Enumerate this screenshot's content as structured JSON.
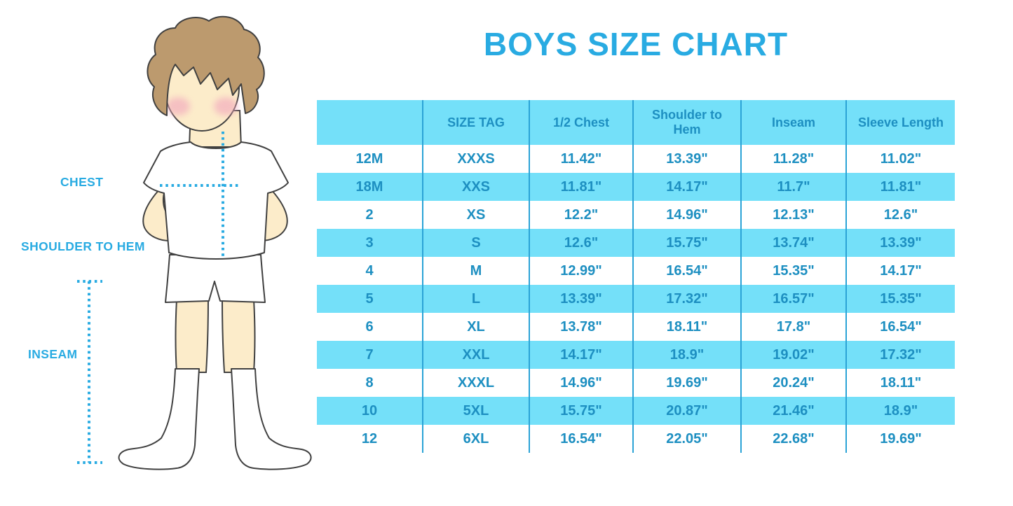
{
  "title": "BOYS SIZE CHART",
  "figure": {
    "chest_label": "CHEST",
    "shoulder_to_hem_label": "SHOULDER TO HEM",
    "inseam_label": "INSEAM"
  },
  "colors": {
    "accent_blue": "#29abe2",
    "stripe_blue": "#74e0f9",
    "table_text_blue": "#1d8fc1",
    "column_divider_blue": "#2ba3d6",
    "hair_brown": "#bc9a6e",
    "skin": "#fcecca",
    "cheek_pink": "#f2a9bd"
  },
  "chart_data": {
    "type": "table",
    "title": "BOYS SIZE CHART",
    "columns": [
      "",
      "SIZE TAG",
      "1/2 Chest",
      "Shoulder to Hem",
      "Inseam",
      "Sleeve Length"
    ],
    "rows": [
      [
        "12M",
        "XXXS",
        "11.42\"",
        "13.39\"",
        "11.28\"",
        "11.02\""
      ],
      [
        "18M",
        "XXS",
        "11.81\"",
        "14.17\"",
        "11.7\"",
        "11.81\""
      ],
      [
        "2",
        "XS",
        "12.2\"",
        "14.96\"",
        "12.13\"",
        "12.6\""
      ],
      [
        "3",
        "S",
        "12.6\"",
        "15.75\"",
        "13.74\"",
        "13.39\""
      ],
      [
        "4",
        "M",
        "12.99\"",
        "16.54\"",
        "15.35\"",
        "14.17\""
      ],
      [
        "5",
        "L",
        "13.39\"",
        "17.32\"",
        "16.57\"",
        "15.35\""
      ],
      [
        "6",
        "XL",
        "13.78\"",
        "18.11\"",
        "17.8\"",
        "16.54\""
      ],
      [
        "7",
        "XXL",
        "14.17\"",
        "18.9\"",
        "19.02\"",
        "17.32\""
      ],
      [
        "8",
        "XXXL",
        "14.96\"",
        "19.69\"",
        "20.24\"",
        "18.11\""
      ],
      [
        "10",
        "5XL",
        "15.75\"",
        "20.87\"",
        "21.46\"",
        "18.9\""
      ],
      [
        "12",
        "6XL",
        "16.54\"",
        "22.05\"",
        "22.68\"",
        "19.69\""
      ]
    ]
  }
}
